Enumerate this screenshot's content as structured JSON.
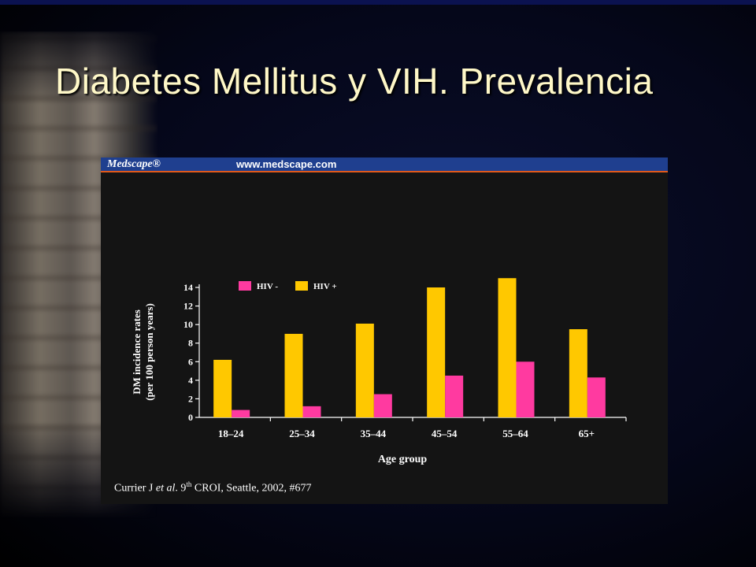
{
  "slide": {
    "title": "Diabetes Mellitus y VIH. Prevalencia"
  },
  "figure": {
    "brand": "Medscape®",
    "url": "www.medscape.com",
    "citation_prefix": "Currier J ",
    "citation_italic": "et al",
    "citation_mid": ". 9",
    "citation_sup": "th",
    "citation_suffix": " CROI, Seattle, 2002, #677"
  },
  "colors": {
    "hiv_negative": "#ff3aa0",
    "hiv_positive": "#ffc800",
    "title_text": "#fff8c8",
    "header_bar": "#1f3f8f",
    "header_rule": "#e05a1c"
  },
  "chart_data": {
    "type": "bar",
    "xlabel": "Age group",
    "ylabel_line1": "DM incidence rates",
    "ylabel_line2": "(per 100 person years)",
    "categories": [
      "18–24",
      "25–34",
      "35–44",
      "45–54",
      "55–64",
      "65+"
    ],
    "ylim": [
      0,
      14
    ],
    "yticks": [
      0,
      2,
      4,
      6,
      8,
      10,
      12,
      14
    ],
    "legend_position": "top-left",
    "series": [
      {
        "name": "HIV -",
        "color": "#ff3aa0",
        "values": [
          0.8,
          1.2,
          2.5,
          4.5,
          6.0,
          4.3
        ]
      },
      {
        "name": "HIV +",
        "color": "#ffc800",
        "values": [
          6.2,
          9.0,
          10.1,
          14.0,
          15.0,
          9.5
        ]
      }
    ]
  }
}
